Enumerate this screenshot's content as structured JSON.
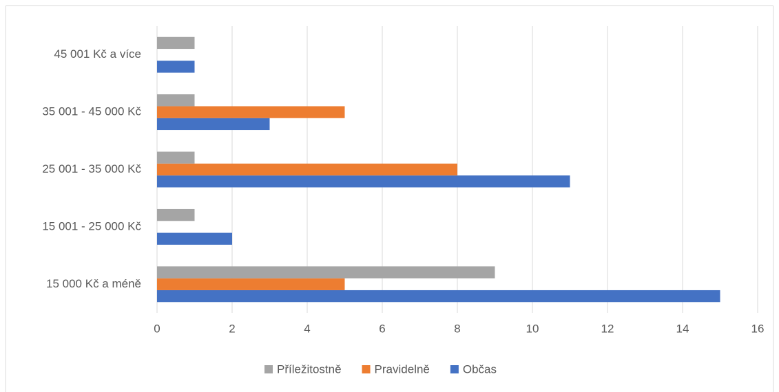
{
  "chart_data": {
    "type": "bar",
    "orientation": "horizontal",
    "categories": [
      "15 000 Kč a méně",
      "15 001 - 25 000 Kč",
      "25 001 - 35 000 Kč",
      "35 001 - 45 000 Kč",
      "45 001 Kč a více"
    ],
    "series": [
      {
        "name": "Občas",
        "color": "#4472c4",
        "values": [
          15,
          2,
          11,
          3,
          1
        ]
      },
      {
        "name": "Pravidelně",
        "color": "#ed7d31",
        "values": [
          5,
          0,
          8,
          5,
          0
        ]
      },
      {
        "name": "Příležitostně",
        "color": "#a5a5a5",
        "values": [
          9,
          1,
          1,
          1,
          1
        ]
      }
    ],
    "xlim": [
      0,
      16
    ],
    "xticks": [
      0,
      2,
      4,
      6,
      8,
      10,
      12,
      14,
      16
    ],
    "grid": true,
    "legend": "bottom"
  }
}
